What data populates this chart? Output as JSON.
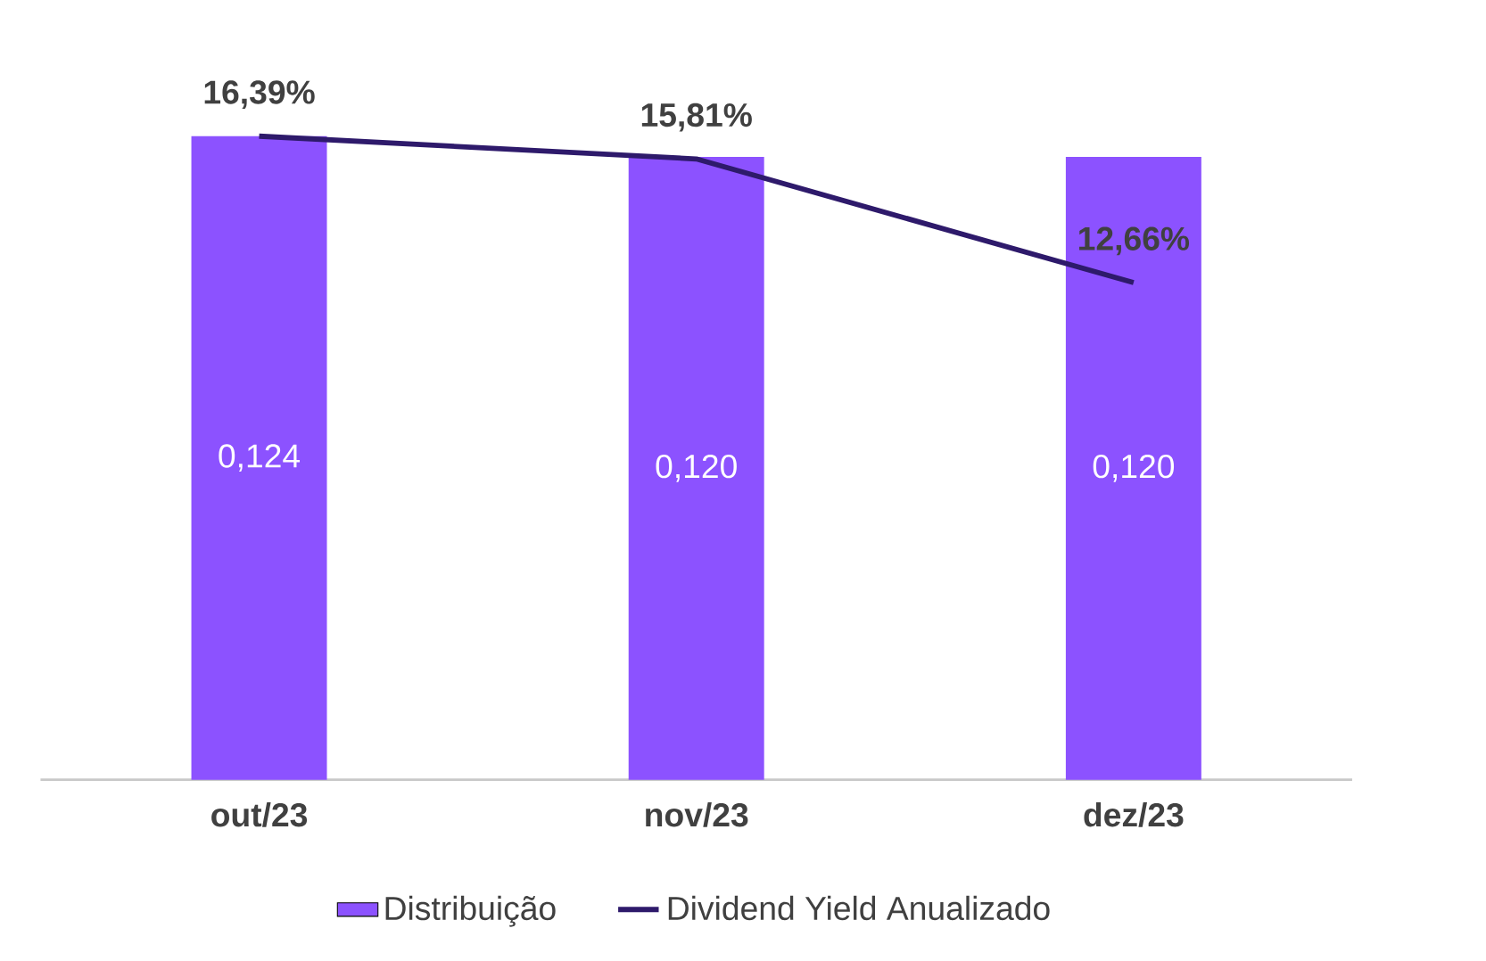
{
  "chart_data": {
    "type": "bar",
    "categories": [
      "out/23",
      "nov/23",
      "dez/23"
    ],
    "series": [
      {
        "name": "Distribuição",
        "type": "bar",
        "color": "#8c52ff",
        "values": [
          0.124,
          0.12,
          0.12
        ],
        "value_labels": [
          "0,124",
          "0,120",
          "0,120"
        ]
      },
      {
        "name": "Dividend Yield Anualizado",
        "type": "line",
        "axis": "y2",
        "color": "#2e1a6b",
        "values": [
          16.39,
          15.81,
          12.66
        ],
        "value_labels": [
          "16,39%",
          "15,81%",
          "12,66%"
        ]
      }
    ],
    "legend": "bottom"
  }
}
